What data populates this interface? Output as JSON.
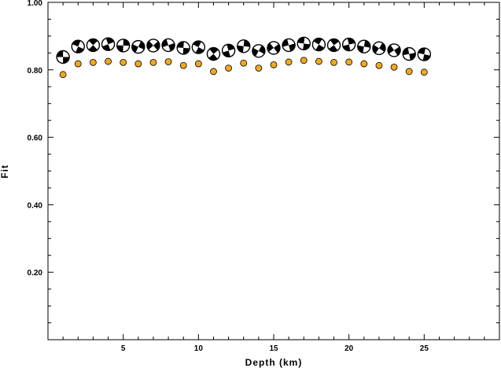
{
  "chart_data": {
    "type": "scatter",
    "xlabel": "Depth (km)",
    "ylabel": "Fit",
    "xlim": [
      0,
      30
    ],
    "ylim": [
      0,
      1.0
    ],
    "x_ticks": [
      {
        "value": 5,
        "label": "5"
      },
      {
        "value": 10,
        "label": "10"
      },
      {
        "value": 15,
        "label": "15"
      },
      {
        "value": 20,
        "label": "20"
      },
      {
        "value": 25,
        "label": "25"
      }
    ],
    "y_ticks": [
      {
        "value": 0.2,
        "label": "0.20"
      },
      {
        "value": 0.4,
        "label": "0.40"
      },
      {
        "value": 0.6,
        "label": "0.60"
      },
      {
        "value": 0.8,
        "label": "0.80"
      },
      {
        "value": 1.0,
        "label": "1.00"
      }
    ],
    "grid": false,
    "series": [
      {
        "marker": "focal-mechanism",
        "color": "#000000",
        "x": [
          1,
          2,
          3,
          4,
          5,
          6,
          7,
          8,
          9,
          10,
          11,
          12,
          13,
          14,
          15,
          16,
          17,
          18,
          19,
          20,
          21,
          22,
          23,
          24,
          25
        ],
        "y": [
          0.838,
          0.869,
          0.873,
          0.876,
          0.872,
          0.868,
          0.872,
          0.873,
          0.865,
          0.867,
          0.847,
          0.857,
          0.87,
          0.856,
          0.865,
          0.873,
          0.878,
          0.875,
          0.873,
          0.875,
          0.869,
          0.864,
          0.858,
          0.847,
          0.846
        ]
      },
      {
        "marker": "circle",
        "color": "#f0a821",
        "x": [
          1,
          2,
          3,
          4,
          5,
          6,
          7,
          8,
          9,
          10,
          11,
          12,
          13,
          14,
          15,
          16,
          17,
          18,
          19,
          20,
          21,
          22,
          23,
          24,
          25
        ],
        "y": [
          0.786,
          0.818,
          0.822,
          0.825,
          0.822,
          0.818,
          0.822,
          0.824,
          0.813,
          0.818,
          0.795,
          0.805,
          0.82,
          0.805,
          0.815,
          0.823,
          0.828,
          0.825,
          0.822,
          0.823,
          0.818,
          0.813,
          0.808,
          0.795,
          0.793
        ]
      }
    ]
  }
}
